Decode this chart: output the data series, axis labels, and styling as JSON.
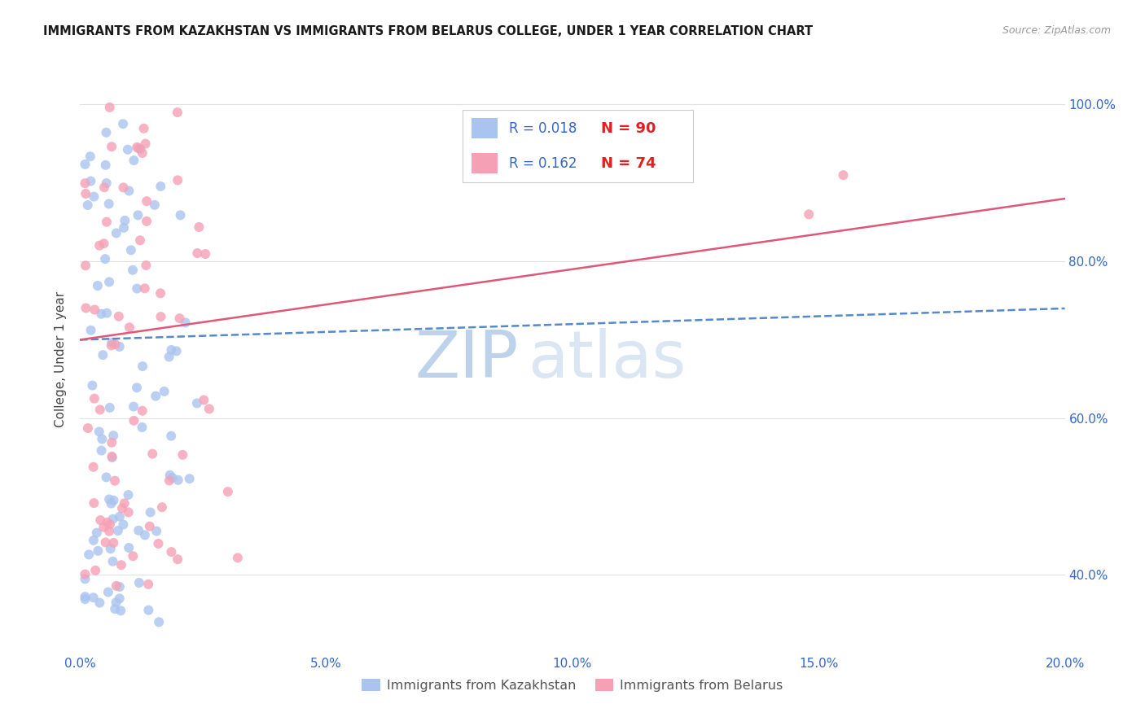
{
  "title": "IMMIGRANTS FROM KAZAKHSTAN VS IMMIGRANTS FROM BELARUS COLLEGE, UNDER 1 YEAR CORRELATION CHART",
  "source": "Source: ZipAtlas.com",
  "ylabel_label": "College, Under 1 year",
  "legend_label1": "Immigrants from Kazakhstan",
  "legend_label2": "Immigrants from Belarus",
  "R1": "0.018",
  "N1": "90",
  "R2": "0.162",
  "N2": "74",
  "color_kaz": "#aac4f0",
  "color_bel": "#f5a0b5",
  "line_kaz_color": "#5588cc",
  "line_bel_color": "#e05878",
  "text_color_blue": "#3366cc",
  "text_color_red": "#dd2222",
  "xlim": [
    0.0,
    0.2
  ],
  "ylim": [
    0.3,
    1.05
  ],
  "background_color": "#ffffff",
  "watermark_zip": "ZIP",
  "watermark_atlas": "atlas",
  "x_tick_vals": [
    0.0,
    0.05,
    0.1,
    0.15,
    0.2
  ],
  "x_tick_labels": [
    "0.0%",
    "5.0%",
    "10.0%",
    "15.0%",
    "20.0%"
  ],
  "y_tick_vals": [
    0.4,
    0.6,
    0.8,
    1.0
  ],
  "y_tick_labels": [
    "40.0%",
    "60.0%",
    "80.0%",
    "100.0%"
  ],
  "kaz_line_y0": 0.7,
  "kaz_line_y1": 0.74,
  "bel_line_y0": 0.7,
  "bel_line_y1": 0.88
}
